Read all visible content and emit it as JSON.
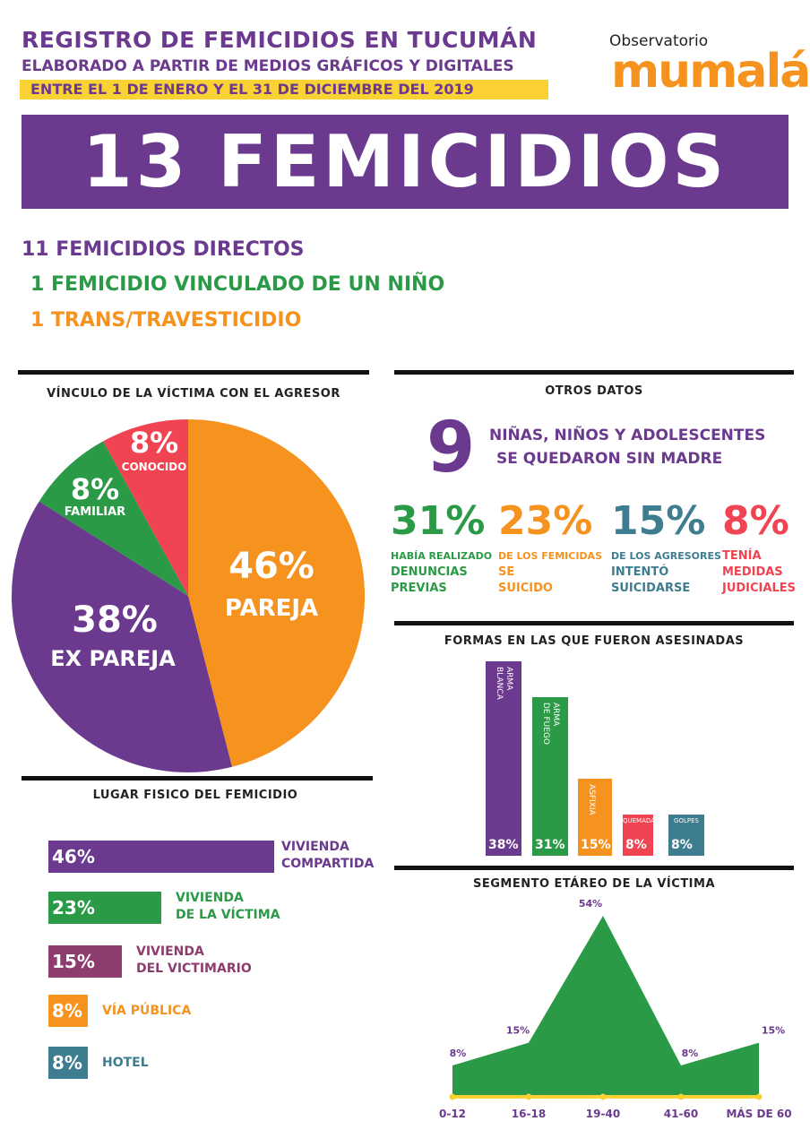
{
  "header": {
    "title": "REGISTRO DE FEMICIDIOS EN TUCUMÁN",
    "subtitle": "ELABORADO A PARTIR DE MEDIOS GRÁFICOS Y DIGITALES",
    "date_range": "ENTRE EL 1 DE ENERO Y EL 31 DE DICIEMBRE DEL 2019",
    "logo_top": "Observatorio",
    "logo_brand": "mumalá"
  },
  "banner": "13 FEMICIDIOS",
  "summary": [
    {
      "text": "11 FEMICIDIOS DIRECTOS",
      "color": "#6b3a8f"
    },
    {
      "text": "1  FEMICIDIO VINCULADO DE UN NIÑO",
      "color": "#2a9a47"
    },
    {
      "text": "1  TRANS/TRAVESTICIDIO",
      "color": "#f6921e"
    }
  ],
  "otros": {
    "title": "OTROS DATOS",
    "kids_number": "9",
    "kids_line1": "NIÑAS, NIÑOS Y ADOLESCENTES",
    "kids_line2": "SE QUEDARON SIN MADRE",
    "stats": [
      {
        "value": "31%",
        "color": "#2a9a47",
        "lines": [
          "HABÍA REALIZADO",
          "DENUNCIAS",
          "PREVIAS"
        ]
      },
      {
        "value": "23%",
        "color": "#f6921e",
        "lines": [
          "DE LOS FEMICIDAS",
          "SE",
          "SUICIDO"
        ]
      },
      {
        "value": "15%",
        "color": "#3d7d8f",
        "lines": [
          "DE LOS AGRESORES",
          "INTENTÓ",
          "SUICIDARSE"
        ]
      },
      {
        "value": "8%",
        "color": "#f04452",
        "lines": [
          "TENÍA",
          "MEDIDAS",
          "JUDICIALES"
        ]
      }
    ]
  },
  "colors": {
    "purple": "#6b3a8f",
    "orange": "#f6921e",
    "green": "#2a9a47",
    "red": "#f04452",
    "teal": "#3d7d8f",
    "plum": "#8e3b6e",
    "yellow": "#fbd234"
  },
  "chart_data": [
    {
      "type": "pie",
      "title": "VÍNCULO  DE  LA  VÍCTIMA  CON  EL  AGRESOR",
      "slices": [
        {
          "label": "PAREJA",
          "value": 46,
          "display": "46%",
          "color": "#f6921e"
        },
        {
          "label": "EX PAREJA",
          "value": 38,
          "display": "38%",
          "color": "#6b3a8f"
        },
        {
          "label": "FAMILIAR",
          "value": 8,
          "display": "8%",
          "color": "#2a9a47"
        },
        {
          "label": "CONOCIDO",
          "value": 8,
          "display": "8%",
          "color": "#f04452"
        }
      ]
    },
    {
      "type": "bar",
      "title": "LUGAR FISICO DEL FEMICIDIO",
      "orientation": "horizontal",
      "categories": [
        "VIVIENDA COMPARTIDA",
        "VIVIENDA DE LA VÍCTIMA",
        "VIVIENDA DEL VICTIMARIO",
        "VÍA PÚBLICA",
        "HOTEL"
      ],
      "label_lines": [
        [
          "VIVIENDA",
          "COMPARTIDA"
        ],
        [
          "VIVIENDA",
          "DE LA VÍCTIMA"
        ],
        [
          "VIVIENDA",
          "DEL VICTIMARIO"
        ],
        [
          "VÍA PÚBLICA"
        ],
        [
          "HOTEL"
        ]
      ],
      "values": [
        46,
        23,
        15,
        8,
        8
      ],
      "display": [
        "46%",
        "23%",
        "15%",
        "8%",
        "8%"
      ],
      "colors": [
        "#6b3a8f",
        "#2a9a47",
        "#8e3b6e",
        "#f6921e",
        "#3d7d8f"
      ]
    },
    {
      "type": "bar",
      "title": "FORMAS EN  LAS QUE FUERON ASESINADAS",
      "orientation": "vertical",
      "categories": [
        "ARMA BLANCA",
        "ARMA DE FUEGO",
        "ASFIXIA",
        "QUEMADA",
        "GOLPES"
      ],
      "label_lines": [
        [
          "ARMA",
          "BLANCA"
        ],
        [
          "ARMA",
          "DE FUEGO"
        ],
        [
          "ASFIXIA"
        ],
        [
          "QUEMADA"
        ],
        [
          "GOLPES"
        ]
      ],
      "values": [
        38,
        31,
        15,
        8,
        8
      ],
      "display": [
        "38%",
        "31%",
        "15%",
        "8%",
        "8%"
      ],
      "colors": [
        "#6b3a8f",
        "#2a9a47",
        "#f6921e",
        "#f04452",
        "#3d7d8f"
      ]
    },
    {
      "type": "area",
      "title": "SEGMENTO ETÁREO DE LA VÍCTIMA",
      "categories": [
        "0-12",
        "16-18",
        "19-40",
        "41-60",
        "MÁS DE 60"
      ],
      "values": [
        8,
        15,
        54,
        8,
        15
      ],
      "display": [
        "8%",
        "15%",
        "54%",
        "8%",
        "15%"
      ],
      "color": "#2a9a47"
    }
  ]
}
